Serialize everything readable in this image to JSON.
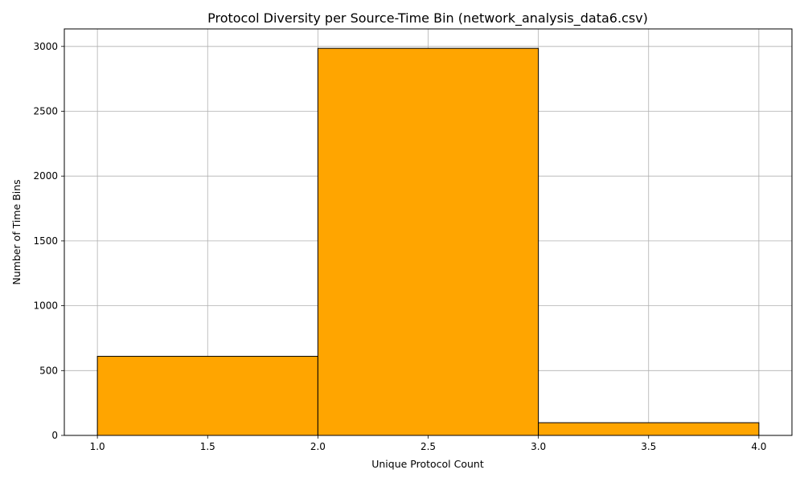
{
  "chart_data": {
    "type": "bar",
    "subtype": "histogram",
    "title": "Protocol Diversity per Source-Time Bin (network_analysis_data6.csv)",
    "xlabel": "Unique Protocol Count",
    "ylabel": "Number of Time Bins",
    "bins": [
      {
        "start": 1.0,
        "end": 2.0,
        "value": 610
      },
      {
        "start": 2.0,
        "end": 3.0,
        "value": 2985
      },
      {
        "start": 3.0,
        "end": 4.0,
        "value": 98
      }
    ],
    "xlim": [
      0.85,
      4.15
    ],
    "ylim": [
      0,
      3135
    ],
    "xticks": [
      "1.0",
      "1.5",
      "2.0",
      "2.5",
      "3.0",
      "3.5",
      "4.0"
    ],
    "yticks": [
      "0",
      "500",
      "1000",
      "1500",
      "2000",
      "2500",
      "3000"
    ],
    "grid": true,
    "colors": {
      "bar_fill": "#FFA500",
      "bar_edge": "#000000",
      "grid": "#b0b0b0"
    }
  }
}
